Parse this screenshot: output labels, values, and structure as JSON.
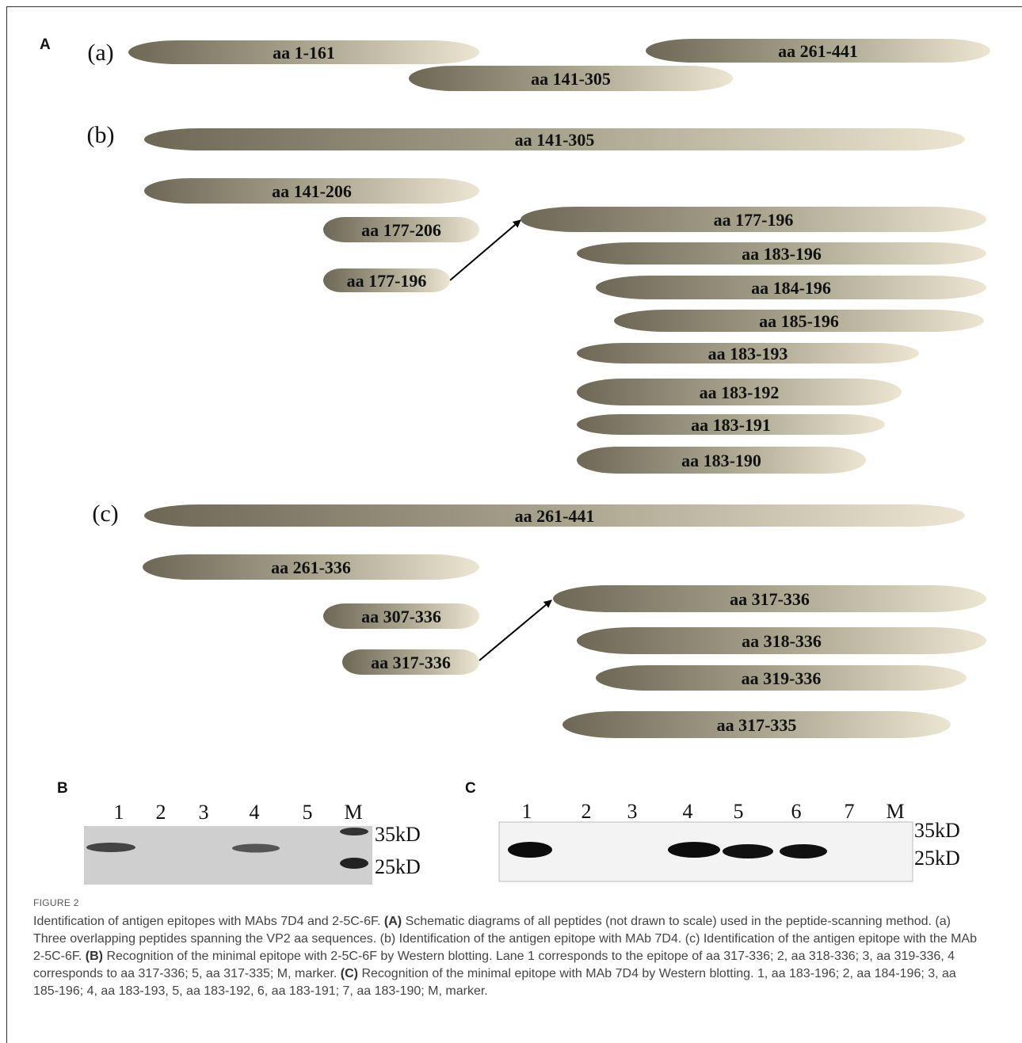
{
  "panel_a": {
    "label": "A",
    "sections": [
      {
        "label": "(a)",
        "peptides": [
          "aa 1-161",
          "aa 141-305",
          "aa 261-441"
        ]
      },
      {
        "label": "(b)",
        "peptides": [
          "aa 141-305",
          "aa 141-206",
          "aa 177-206",
          "aa 177-196",
          "aa 177-196",
          "aa 183-196",
          "aa 184-196",
          "aa 185-196",
          "aa 183-193",
          "aa 183-192",
          "aa 183-191",
          "aa 183-190"
        ]
      },
      {
        "label": "(c)",
        "peptides": [
          "aa 261-441",
          "aa 261-336",
          "aa 307-336",
          "aa 317-336",
          "aa 317-336",
          "aa 318-336",
          "aa 319-336",
          "aa 317-335"
        ]
      }
    ]
  },
  "panel_b": {
    "label": "B",
    "lanes": [
      "1",
      "2",
      "3",
      "4",
      "5",
      "M"
    ],
    "markers": [
      "35kD",
      "25kD"
    ]
  },
  "panel_c": {
    "label": "C",
    "lanes": [
      "1",
      "2",
      "3",
      "4",
      "5",
      "6",
      "7",
      "M"
    ],
    "markers": [
      "35kD",
      "25kD"
    ]
  },
  "caption": {
    "label": "FIGURE 2",
    "segments": [
      {
        "text": "Identification of antigen epitopes with MAbs 7D4 and 2-5C-6F. "
      },
      {
        "text": "(A)",
        "bold": true
      },
      {
        "text": " Schematic diagrams of all peptides (not drawn to scale) used in the peptide-scanning method. (a) Three overlapping peptides spanning the VP2 aa sequences. (b) Identification of the antigen epitope with MAb 7D4. (c) Identification of the antigen epitope with the MAb 2-5C-6F. "
      },
      {
        "text": "(B)",
        "bold": true
      },
      {
        "text": " Recognition of the minimal epitope with 2-5C-6F by Western blotting. Lane 1 corresponds to the epitope of aa 317-336; 2, aa 318-336; 3, aa 319-336, 4 corresponds to aa 317-336; 5, aa 317-335; M, marker. "
      },
      {
        "text": "(C)",
        "bold": true
      },
      {
        "text": " Recognition of the minimal epitope with MAb 7D4 by Western blotting. 1, aa 183-196; 2, aa 184-196; 3, aa 185-196; 4, aa 183-193, 5, aa 183-192, 6, aa 183-191; 7, aa 183-190; M, marker."
      }
    ]
  }
}
